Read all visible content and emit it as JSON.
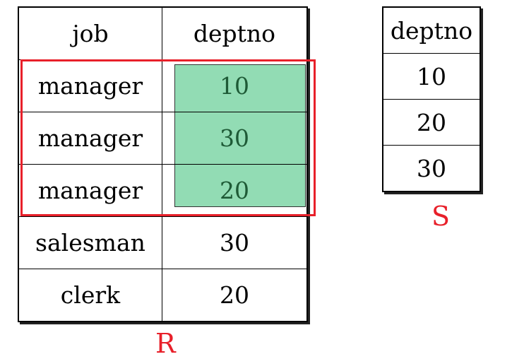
{
  "table_r": {
    "headers": [
      "job",
      "deptno"
    ],
    "rows": [
      [
        "manager",
        "10"
      ],
      [
        "manager",
        "30"
      ],
      [
        "manager",
        "20"
      ],
      [
        "salesman",
        "30"
      ],
      [
        "clerk",
        "20"
      ]
    ],
    "label": "R"
  },
  "table_s": {
    "header": "deptno",
    "rows": [
      "10",
      "20",
      "30"
    ],
    "label": "S"
  },
  "colors": {
    "highlight_fill": "#92dcb4",
    "highlight_text": "#1e5a36",
    "selection_border": "#e8202a",
    "label_color": "#e8202a"
  }
}
